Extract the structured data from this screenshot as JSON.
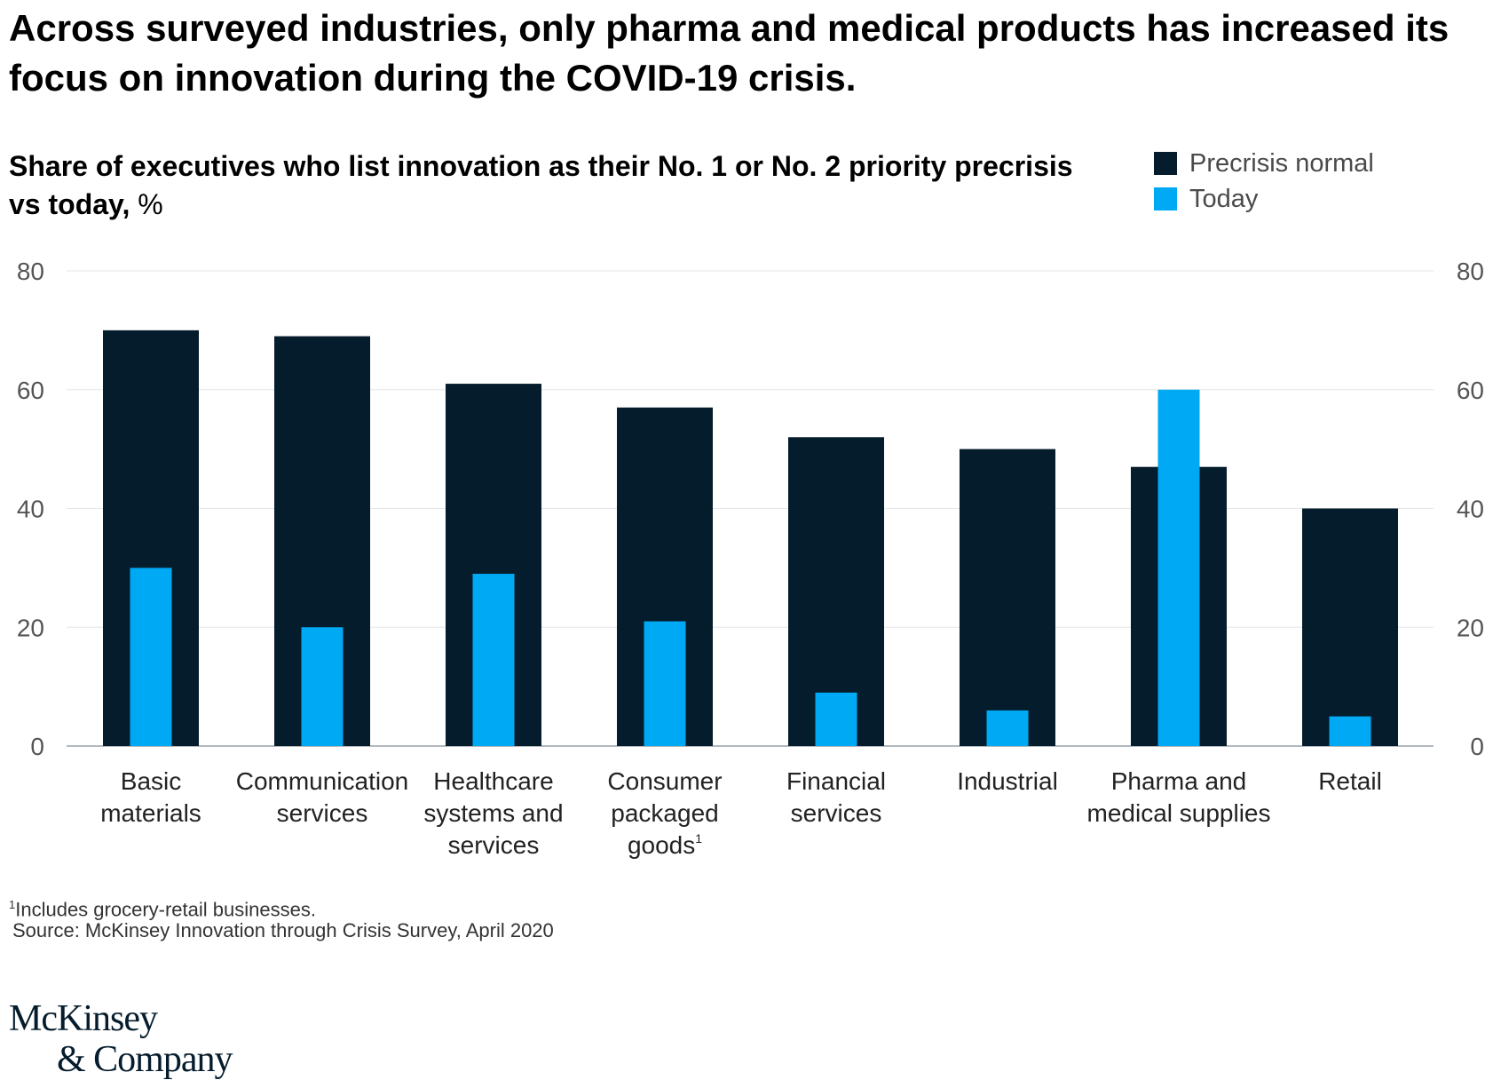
{
  "headline": "Across surveyed industries, only pharma and medical products has increased its focus on innovation during the COVID-19 crisis.",
  "subtitle": {
    "bold": "Share of executives who list innovation as their No. 1 or No. 2 priority precrisis vs today,",
    "unit": " %"
  },
  "legend": [
    {
      "label": "Precrisis normal",
      "color": "#051c2c"
    },
    {
      "label": "Today",
      "color": "#00a9f4"
    }
  ],
  "chart_data": {
    "type": "bar",
    "title": "",
    "ylabel": "",
    "xlabel": "",
    "ylim": [
      0,
      80
    ],
    "yticks": [
      0,
      20,
      40,
      60,
      80
    ],
    "grid": true,
    "legend_position": "top-right",
    "categories": [
      {
        "lines": [
          "Basic",
          "materials"
        ],
        "sup": ""
      },
      {
        "lines": [
          "Communication",
          "services"
        ],
        "sup": ""
      },
      {
        "lines": [
          "Healthcare",
          "systems and",
          "services"
        ],
        "sup": ""
      },
      {
        "lines": [
          "Consumer",
          "packaged",
          "goods"
        ],
        "sup": "1"
      },
      {
        "lines": [
          "Financial",
          "services"
        ],
        "sup": ""
      },
      {
        "lines": [
          "Industrial"
        ],
        "sup": ""
      },
      {
        "lines": [
          "Pharma and",
          "medical supplies"
        ],
        "sup": ""
      },
      {
        "lines": [
          "Retail"
        ],
        "sup": ""
      }
    ],
    "series": [
      {
        "name": "Precrisis normal",
        "color": "#051c2c",
        "values": [
          70,
          69,
          61,
          57,
          52,
          50,
          47,
          40
        ]
      },
      {
        "name": "Today",
        "color": "#00a9f4",
        "values": [
          30,
          20,
          29,
          21,
          9,
          6,
          60,
          5
        ]
      }
    ]
  },
  "footnote": {
    "marker": "1",
    "text": "Includes grocery-retail businesses."
  },
  "source": "Source: McKinsey Innovation through Crisis Survey, April 2020",
  "logo": {
    "line1": "McKinsey",
    "line2": "& Company"
  }
}
